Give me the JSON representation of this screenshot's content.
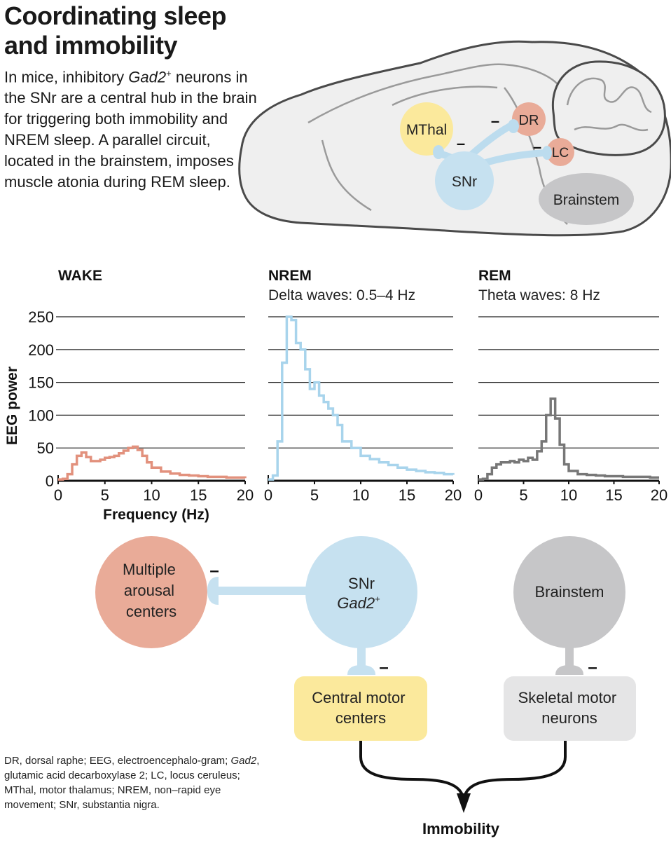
{
  "title_line1": "Coordinating sleep",
  "title_line2": "and immobility",
  "intro": {
    "p1": "In mice, inhibitory ",
    "gene": "Gad2",
    "sup": "+",
    "p2": " neurons in the SNr are a central hub in the brain for triggering both immobility and NREM sleep. A parallel circuit, located in the brainstem, imposes muscle atonia during REM sleep."
  },
  "brain": {
    "mthal": "MThal",
    "snr": "SNr",
    "dr": "DR",
    "lc": "LC",
    "brainstem": "Brainstem",
    "inhibit": "–"
  },
  "chart_data": [
    {
      "type": "line",
      "title": "WAKE",
      "subtitle": "",
      "xlabel": "Frequency (Hz)",
      "ylabel": "EEG power",
      "xlim": [
        0,
        20
      ],
      "ylim": [
        0,
        250
      ],
      "xticks": [
        "0",
        "5",
        "10",
        "15",
        "20"
      ],
      "yticks": [
        "0",
        "50",
        "100",
        "150",
        "200",
        "250"
      ],
      "color": "#e2917d",
      "x": [
        0,
        0.5,
        1,
        1.5,
        2,
        2.5,
        3,
        3.5,
        4,
        4.5,
        5,
        5.5,
        6,
        6.5,
        7,
        7.5,
        8,
        8.5,
        9,
        9.5,
        10,
        11,
        12,
        13,
        14,
        15,
        16,
        17,
        18,
        19,
        20
      ],
      "values": [
        2,
        3,
        10,
        25,
        38,
        43,
        36,
        30,
        30,
        32,
        35,
        36,
        38,
        42,
        46,
        50,
        52,
        47,
        38,
        28,
        20,
        14,
        11,
        9,
        8,
        7,
        6,
        6,
        5,
        5,
        4
      ]
    },
    {
      "type": "line",
      "title": "NREM",
      "subtitle": "Delta waves: 0.5–4 Hz",
      "xlabel": "",
      "ylabel": "",
      "xlim": [
        0,
        20
      ],
      "ylim": [
        0,
        250
      ],
      "xticks": [
        "0",
        "5",
        "10",
        "15",
        "20"
      ],
      "yticks": [],
      "color": "#a8d4ec",
      "x": [
        0,
        0.5,
        1,
        1.5,
        2,
        2.5,
        3,
        3.5,
        4,
        4.5,
        5,
        5.5,
        6,
        6.5,
        7,
        7.5,
        8,
        9,
        10,
        11,
        12,
        13,
        14,
        15,
        16,
        17,
        18,
        19,
        20
      ],
      "values": [
        2,
        8,
        60,
        180,
        250,
        245,
        210,
        200,
        170,
        140,
        150,
        130,
        120,
        110,
        100,
        85,
        60,
        50,
        38,
        33,
        28,
        24,
        20,
        17,
        15,
        13,
        12,
        10,
        9
      ]
    },
    {
      "type": "line",
      "title": "REM",
      "subtitle": "Theta waves: 8 Hz",
      "xlabel": "",
      "ylabel": "",
      "xlim": [
        0,
        20
      ],
      "ylim": [
        0,
        250
      ],
      "xticks": [
        "0",
        "5",
        "10",
        "15",
        "20"
      ],
      "yticks": [],
      "color": "#777777",
      "x": [
        0,
        0.5,
        1,
        1.5,
        2,
        2.5,
        3,
        3.5,
        4,
        4.5,
        5,
        5.5,
        6,
        6.5,
        7,
        7.5,
        8,
        8.5,
        9,
        9.5,
        10,
        11,
        12,
        13,
        14,
        15,
        16,
        17,
        18,
        19,
        20
      ],
      "values": [
        2,
        3,
        10,
        20,
        25,
        28,
        28,
        30,
        28,
        32,
        30,
        35,
        32,
        45,
        60,
        100,
        125,
        95,
        55,
        25,
        15,
        10,
        9,
        8,
        7,
        7,
        6,
        6,
        6,
        5,
        5
      ]
    }
  ],
  "circuit": {
    "arousal": [
      "Multiple",
      "arousal",
      "centers"
    ],
    "snr": "SNr",
    "snr_gene": "Gad2",
    "snr_sup": "+",
    "brainstem": "Brainstem",
    "central_motor": [
      "Central motor",
      "centers"
    ],
    "skeletal_motor": [
      "Skeletal motor",
      "neurons"
    ],
    "immobility": "Immobility",
    "inhibit": "–"
  },
  "footnote": {
    "a": "DR, dorsal raphe; EEG, electroencephalo-gram; ",
    "gene": "Gad2",
    "b": ", glutamic acid decarboxylase 2; LC, locus ceruleus; MThal, motor thalamus; NREM,  non–rapid eye movement; SNr, substantia nigra."
  },
  "colors": {
    "pink": "#e9ab98",
    "blue": "#c6e1f0",
    "yellow": "#fbe99c",
    "gray": "#c6c6c8",
    "lightgray": "#e5e5e6",
    "brain_fill": "#efefef",
    "brain_line": "#4a4a4a"
  }
}
